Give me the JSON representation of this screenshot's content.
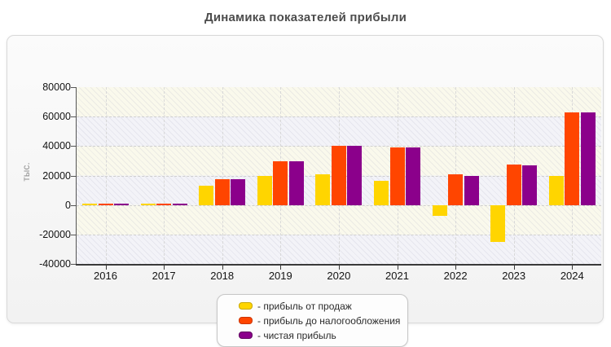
{
  "title": "Динамика показателей прибыли",
  "chart_data": {
    "type": "bar",
    "title": "Динамика показателей прибыли",
    "xlabel": "",
    "ylabel": "тыс.",
    "categories": [
      "2016",
      "2017",
      "2018",
      "2019",
      "2020",
      "2021",
      "2022",
      "2023",
      "2024"
    ],
    "series": [
      {
        "name": "прибыль от продаж",
        "color": "#FFD500",
        "border_color": "#C9A800",
        "values": [
          1000,
          1000,
          13000,
          19500,
          21000,
          16500,
          -7500,
          -25000,
          19500
        ]
      },
      {
        "name": "прибыль до налогообложения",
        "color": "#FF4500",
        "border_color": "#CC3400",
        "values": [
          1000,
          1000,
          17500,
          29500,
          40000,
          39000,
          21000,
          27500,
          63000
        ]
      },
      {
        "name": "чистая прибыль",
        "color": "#8B008B",
        "border_color": "#5E005E",
        "values": [
          1000,
          1000,
          17500,
          29500,
          40000,
          39000,
          20000,
          27000,
          63000
        ]
      }
    ],
    "ylim": [
      -40000,
      80000
    ],
    "yticks": [
      80000,
      60000,
      40000,
      20000,
      0,
      -20000,
      -40000
    ],
    "grid": "dashed horizontal lines every 20000 and dashed vertical lines at each year",
    "legend_position": "bottom-center",
    "plot_band_colors": [
      "#FAF9EC",
      "#F3F3F8"
    ]
  },
  "legend": {
    "items": [
      {
        "label": "- прибыль от продаж",
        "color": "#FFD500",
        "border_color": "#C9A800"
      },
      {
        "label": "- прибыль до налогообложения",
        "color": "#FF4500",
        "border_color": "#CC3400"
      },
      {
        "label": "- чистая прибыль",
        "color": "#8B008B",
        "border_color": "#5E005E"
      }
    ]
  }
}
